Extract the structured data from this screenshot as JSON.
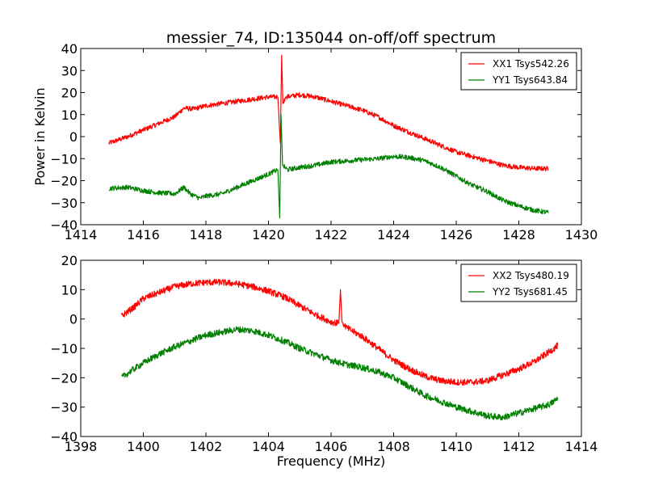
{
  "chart_data": [
    {
      "type": "line",
      "title": "messier_74, ID:135044 on-off/off spectrum",
      "xlabel": "",
      "ylabel": "Power in Kelvin",
      "xlim": [
        1414,
        1430
      ],
      "ylim": [
        -40,
        40
      ],
      "xticks": [
        "1414",
        "1416",
        "1418",
        "1420",
        "1422",
        "1424",
        "1426",
        "1428",
        "1430"
      ],
      "yticks": [
        "40",
        "30",
        "20",
        "10",
        "0",
        "−10",
        "−20",
        "−30",
        "−40"
      ],
      "grid": false,
      "legend_position": "top-right",
      "series": [
        {
          "name": "XX1 Tsys542.26",
          "color": "#ff0000",
          "x": [
            1414.9,
            1415.5,
            1416.0,
            1416.5,
            1417.0,
            1417.3,
            1417.6,
            1418.0,
            1418.5,
            1419.0,
            1419.5,
            1420.0,
            1420.3,
            1420.38,
            1420.42,
            1420.46,
            1420.55,
            1421.0,
            1421.5,
            1422.0,
            1422.5,
            1423.0,
            1423.5,
            1424.0,
            1424.5,
            1425.0,
            1425.5,
            1426.0,
            1426.5,
            1427.0,
            1427.5,
            1428.0,
            1428.5,
            1428.95
          ],
          "y": [
            -3,
            0,
            3,
            6,
            9,
            13,
            12.5,
            14,
            15,
            16,
            17,
            18,
            18,
            -3,
            37,
            15,
            18,
            19,
            18,
            16,
            14,
            12,
            9,
            5,
            2,
            -1,
            -4,
            -7,
            -9,
            -11,
            -13,
            -14,
            -14.5,
            -14.5
          ]
        },
        {
          "name": "YY1 Tsys643.84",
          "color": "#008000",
          "x": [
            1414.9,
            1415.5,
            1416.0,
            1416.5,
            1417.0,
            1417.3,
            1417.5,
            1417.8,
            1418.0,
            1418.5,
            1419.0,
            1419.5,
            1420.0,
            1420.3,
            1420.36,
            1420.4,
            1420.45,
            1420.6,
            1421.0,
            1421.5,
            1422.0,
            1422.5,
            1423.0,
            1423.5,
            1424.0,
            1424.5,
            1425.0,
            1425.5,
            1426.0,
            1426.5,
            1427.0,
            1427.5,
            1428.0,
            1428.5,
            1428.95
          ],
          "y": [
            -23.5,
            -23,
            -24.5,
            -25.5,
            -26,
            -23,
            -26,
            -28,
            -27,
            -26,
            -23,
            -20,
            -17,
            -15,
            -37,
            10,
            -13,
            -15,
            -14,
            -13,
            -11.5,
            -11,
            -10.5,
            -10,
            -9,
            -9.5,
            -11,
            -14,
            -18,
            -22,
            -25,
            -29,
            -31.5,
            -33.5,
            -34.5
          ]
        }
      ]
    },
    {
      "type": "line",
      "title": "",
      "xlabel": "Frequency (MHz)",
      "ylabel": "",
      "xlim": [
        1398,
        1414
      ],
      "ylim": [
        -40,
        20
      ],
      "xticks": [
        "1398",
        "1400",
        "1402",
        "1404",
        "1406",
        "1408",
        "1410",
        "1412",
        "1414"
      ],
      "yticks": [
        "20",
        "10",
        "0",
        "−10",
        "−20",
        "−30",
        "−40"
      ],
      "grid": false,
      "legend_position": "top-right",
      "series": [
        {
          "name": "XX2 Tsys480.19",
          "color": "#ff0000",
          "x": [
            1399.3,
            1399.7,
            1400.0,
            1400.5,
            1401.0,
            1401.5,
            1402.0,
            1402.5,
            1403.0,
            1403.5,
            1404.0,
            1404.5,
            1405.0,
            1405.5,
            1406.0,
            1406.25,
            1406.3,
            1406.35,
            1406.5,
            1407.0,
            1407.5,
            1408.0,
            1408.5,
            1409.0,
            1409.5,
            1410.0,
            1410.5,
            1411.0,
            1411.5,
            1412.0,
            1412.5,
            1413.0,
            1413.25
          ],
          "y": [
            1,
            4,
            7,
            9,
            11,
            12,
            12.5,
            12.5,
            12,
            11,
            9.5,
            7.5,
            4.5,
            1.5,
            -1,
            -1.5,
            10,
            -1,
            -3,
            -6,
            -10,
            -14,
            -17,
            -19.5,
            -21,
            -21.5,
            -21.5,
            -21,
            -19,
            -17,
            -14.5,
            -11,
            -9
          ]
        },
        {
          "name": "YY2 Tsys681.45",
          "color": "#008000",
          "x": [
            1399.3,
            1399.7,
            1400.0,
            1400.5,
            1401.0,
            1401.5,
            1402.0,
            1402.5,
            1403.0,
            1403.5,
            1404.0,
            1404.5,
            1405.0,
            1405.5,
            1406.0,
            1406.5,
            1407.0,
            1407.5,
            1408.0,
            1408.5,
            1409.0,
            1409.5,
            1410.0,
            1410.5,
            1411.0,
            1411.5,
            1412.0,
            1412.5,
            1413.0,
            1413.25
          ],
          "y": [
            -20,
            -17,
            -15,
            -12,
            -9.5,
            -7.5,
            -5.5,
            -4.5,
            -3.5,
            -4,
            -5.5,
            -7.5,
            -10,
            -12,
            -14,
            -15.5,
            -16.5,
            -18,
            -20,
            -23,
            -26,
            -28,
            -30,
            -31.5,
            -33,
            -33.5,
            -32,
            -30.5,
            -29,
            -27
          ]
        }
      ]
    }
  ]
}
